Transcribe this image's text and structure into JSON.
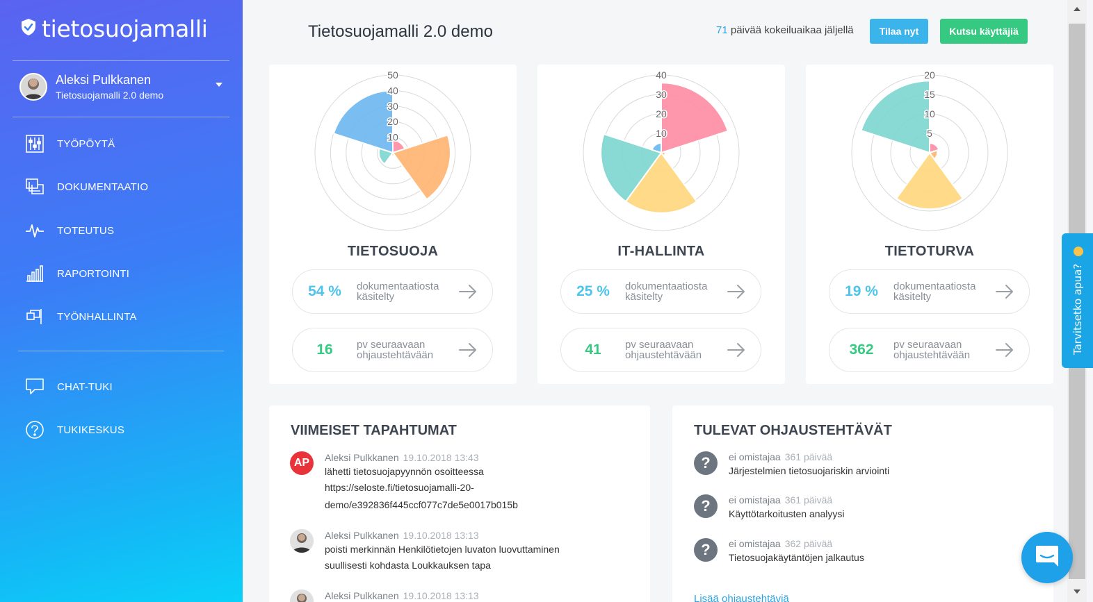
{
  "app": {
    "logo_text": "tietosuojamalli"
  },
  "user": {
    "name": "Aleksi Pulkkanen",
    "organization": "Tietosuojamalli 2.0 demo"
  },
  "nav": [
    {
      "label": "TYÖPÖYTÄ",
      "icon": "sliders-icon"
    },
    {
      "label": "DOKUMENTAATIO",
      "icon": "documents-icon"
    },
    {
      "label": "TOTEUTUS",
      "icon": "pulse-icon"
    },
    {
      "label": "RAPORTOINTI",
      "icon": "bar-chart-icon"
    },
    {
      "label": "TYÖNHALLINTA",
      "icon": "tasks-icon"
    },
    {
      "label": "CHAT-TUKI",
      "icon": "chat-icon"
    },
    {
      "label": "TUKIKESKUS",
      "icon": "help-circle-icon"
    }
  ],
  "header": {
    "title": "Tietosuojamalli 2.0 demo",
    "trial_days": "71",
    "trial_text": "päivää kokeiluaikaa jäljellä",
    "order_button": "Tilaa nyt",
    "invite_button": "Kutsu käyttäjiä"
  },
  "areas": [
    {
      "title": "TIETOSUOJA",
      "doc_percent": "54 %",
      "doc_text_1": "dokumentaatiosta",
      "doc_text_2": "käsitelty",
      "days_value": "16",
      "days_text_1": "pv seuraavaan",
      "days_text_2": "ohjaustehtävään",
      "rmax": 50,
      "ticks": [
        "10",
        "20",
        "30",
        "40",
        "50"
      ],
      "slices": [
        {
          "value": 8,
          "color": "#ff8fa6"
        },
        {
          "value": 37,
          "color": "#ffb574"
        },
        {
          "value": 2,
          "color": "#ffd97f"
        },
        {
          "value": 9,
          "color": "#7fd6d1"
        },
        {
          "value": 40,
          "color": "#6fb8f0"
        }
      ]
    },
    {
      "title": "IT-HALLINTA",
      "doc_percent": "25 %",
      "doc_text_1": "dokumentaatiosta",
      "doc_text_2": "käsitelty",
      "days_value": "41",
      "days_text_1": "pv seuraavaan",
      "days_text_2": "ohjaustehtävään",
      "rmax": 40,
      "ticks": [
        "10",
        "20",
        "30",
        "40"
      ],
      "slices": [
        {
          "value": 36,
          "color": "#ff8fa6"
        },
        {
          "value": 2,
          "color": "#ffb574"
        },
        {
          "value": 31,
          "color": "#ffd97f"
        },
        {
          "value": 31,
          "color": "#7fd6d1"
        },
        {
          "value": 5,
          "color": "#6fb8f0"
        }
      ]
    },
    {
      "title": "TIETOTURVA",
      "doc_percent": "19 %",
      "doc_text_1": "dokumentaatiosta",
      "doc_text_2": "käsitelty",
      "days_value": "362",
      "days_text_1": "pv seuraavaan",
      "days_text_2": "ohjaustehtävään",
      "rmax": 20,
      "ticks": [
        "5",
        "10",
        "15",
        "20"
      ],
      "slices": [
        {
          "value": 2.5,
          "color": "#ff8fa6"
        },
        {
          "value": 2.0,
          "color": "#ffb574"
        },
        {
          "value": 14.5,
          "color": "#ffd97f"
        },
        {
          "value": 0,
          "color": "#7fd6d1"
        },
        {
          "value": 18.5,
          "color": "#7fd6d1"
        }
      ]
    }
  ],
  "events": {
    "title": "VIIMEISET TAPAHTUMAT",
    "items": [
      {
        "initials": "AP",
        "user": "Aleksi Pulkkanen",
        "time": "19.10.2018 13:43",
        "line1": "lähetti tietosuojapyynnön osoitteessa",
        "line2": "https://seloste.fi/tietosuojamalli-20-",
        "line3": "demo/e392836f445ccf077c7de5e0017b015b"
      },
      {
        "initials": "",
        "user": "Aleksi Pulkkanen",
        "time": "19.10.2018 13:13",
        "line1": "poisti merkinnän Henkilötietojen luvaton luovuttaminen",
        "line2": "suullisesti kohdasta Loukkauksen tapa",
        "line3": ""
      },
      {
        "initials": "",
        "user": "Aleksi Pulkkanen",
        "time": "19.10.2018 13:13",
        "line1": "",
        "line2": "",
        "line3": ""
      }
    ]
  },
  "tasks": {
    "title": "TULEVAT OHJAUSTEHTÄVÄT",
    "items": [
      {
        "owner": "ei omistajaa",
        "days": "361 päivää",
        "name": "Järjestelmien tietosuojariskin arviointi"
      },
      {
        "owner": "ei omistajaa",
        "days": "361 päivää",
        "name": "Käyttötarkoitusten analyysi"
      },
      {
        "owner": "ei omistajaa",
        "days": "362 päivää",
        "name": "Tietosuojakäytäntöjen jalkautus"
      }
    ],
    "more_link": "Lisää ohjaustehtäviä"
  },
  "help_tab": {
    "label": "Tarvitsetko apua?"
  }
}
